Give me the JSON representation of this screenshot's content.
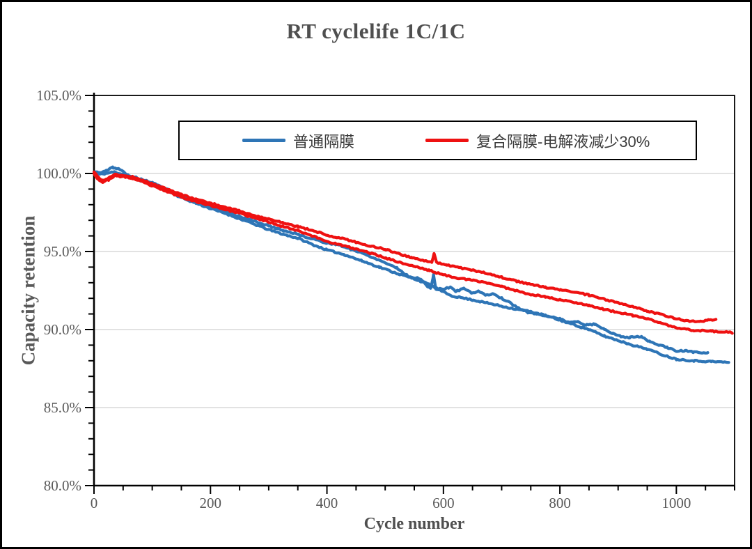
{
  "title": "RT cyclelife 1C/1C",
  "chart_data": {
    "type": "line",
    "title": "RT cyclelife 1C/1C",
    "xlabel": "Cycle number",
    "ylabel": "Capacity retention",
    "xlim": [
      0,
      1100
    ],
    "ylim": [
      80,
      105
    ],
    "grid": "horizontal-major-only",
    "legend_position": "top-center-boxed",
    "gridline_color": "#d9d9d9",
    "axis_color": "#000000",
    "tick_label_color": "#595959",
    "x_ticks": [
      {
        "value": 0,
        "label": "0"
      },
      {
        "value": 200,
        "label": "200"
      },
      {
        "value": 400,
        "label": "400"
      },
      {
        "value": 600,
        "label": "600"
      },
      {
        "value": 800,
        "label": "800"
      },
      {
        "value": 1000,
        "label": "1000"
      }
    ],
    "x_minor_step": 50,
    "y_ticks": [
      {
        "value": 105,
        "label": "105.0%"
      },
      {
        "value": 100,
        "label": "100.0%"
      },
      {
        "value": 95,
        "label": "95.0%"
      },
      {
        "value": 90,
        "label": "90.0%"
      },
      {
        "value": 85,
        "label": "85.0%"
      },
      {
        "value": 80,
        "label": "80.0%"
      }
    ],
    "y_minor_step": 1,
    "noise_amplitude": 0.045,
    "series": [
      {
        "name": "普通隔膜",
        "color": "#2E75B6",
        "traces": [
          [
            [
              0,
              100.1
            ],
            [
              10,
              100.05
            ],
            [
              20,
              100.15
            ],
            [
              32,
              100.4
            ],
            [
              45,
              100.25
            ],
            [
              58,
              99.9
            ],
            [
              75,
              99.7
            ],
            [
              100,
              99.4
            ],
            [
              125,
              99.0
            ],
            [
              150,
              98.55
            ],
            [
              175,
              98.2
            ],
            [
              200,
              97.9
            ],
            [
              225,
              97.55
            ],
            [
              250,
              97.25
            ],
            [
              275,
              96.95
            ],
            [
              300,
              96.65
            ],
            [
              325,
              96.35
            ],
            [
              350,
              96.1
            ],
            [
              375,
              95.8
            ],
            [
              400,
              95.55
            ],
            [
              415,
              95.45
            ],
            [
              430,
              95.3
            ],
            [
              460,
              94.9
            ],
            [
              490,
              94.45
            ],
            [
              520,
              93.95
            ],
            [
              540,
              93.4
            ],
            [
              560,
              93.25
            ],
            [
              572,
              92.8
            ],
            [
              578,
              92.6
            ],
            [
              583,
              93.5
            ],
            [
              587,
              92.6
            ],
            [
              600,
              92.6
            ],
            [
              612,
              92.7
            ],
            [
              622,
              92.45
            ],
            [
              635,
              92.65
            ],
            [
              648,
              92.35
            ],
            [
              660,
              92.45
            ],
            [
              672,
              92.2
            ],
            [
              685,
              92.3
            ],
            [
              700,
              92.0
            ],
            [
              715,
              91.7
            ],
            [
              730,
              91.35
            ],
            [
              745,
              91.1
            ],
            [
              760,
              91.0
            ],
            [
              780,
              90.85
            ],
            [
              800,
              90.7
            ],
            [
              815,
              90.45
            ],
            [
              830,
              90.5
            ],
            [
              845,
              90.3
            ],
            [
              860,
              90.35
            ],
            [
              875,
              90.05
            ],
            [
              890,
              89.75
            ],
            [
              905,
              89.55
            ],
            [
              920,
              89.5
            ],
            [
              940,
              89.55
            ],
            [
              955,
              89.2
            ],
            [
              970,
              89.0
            ],
            [
              985,
              88.85
            ],
            [
              1000,
              88.6
            ],
            [
              1015,
              88.65
            ],
            [
              1030,
              88.55
            ],
            [
              1054,
              88.5
            ]
          ],
          [
            [
              0,
              100.0
            ],
            [
              10,
              99.95
            ],
            [
              20,
              100.0
            ],
            [
              35,
              100.1
            ],
            [
              50,
              99.95
            ],
            [
              65,
              99.7
            ],
            [
              85,
              99.5
            ],
            [
              100,
              99.3
            ],
            [
              125,
              98.9
            ],
            [
              150,
              98.45
            ],
            [
              175,
              98.1
            ],
            [
              200,
              97.75
            ],
            [
              225,
              97.45
            ],
            [
              250,
              97.1
            ],
            [
              275,
              96.75
            ],
            [
              300,
              96.4
            ],
            [
              325,
              96.1
            ],
            [
              350,
              95.85
            ],
            [
              375,
              95.45
            ],
            [
              400,
              95.1
            ],
            [
              430,
              94.8
            ],
            [
              460,
              94.4
            ],
            [
              490,
              94.0
            ],
            [
              520,
              93.6
            ],
            [
              550,
              93.25
            ],
            [
              575,
              92.9
            ],
            [
              600,
              92.4
            ],
            [
              615,
              92.15
            ],
            [
              630,
              92.05
            ],
            [
              650,
              91.9
            ],
            [
              675,
              91.7
            ],
            [
              700,
              91.5
            ],
            [
              725,
              91.3
            ],
            [
              750,
              91.15
            ],
            [
              775,
              90.9
            ],
            [
              800,
              90.6
            ],
            [
              825,
              90.3
            ],
            [
              850,
              90.0
            ],
            [
              875,
              89.6
            ],
            [
              900,
              89.3
            ],
            [
              925,
              89.0
            ],
            [
              950,
              88.75
            ],
            [
              975,
              88.4
            ],
            [
              1000,
              88.1
            ],
            [
              1030,
              88.0
            ],
            [
              1060,
              87.95
            ],
            [
              1090,
              87.9
            ]
          ]
        ]
      },
      {
        "name": "复合隔膜-电解液减少30%",
        "color": "#EE1111",
        "traces": [
          [
            [
              0,
              100.1
            ],
            [
              8,
              99.75
            ],
            [
              15,
              99.55
            ],
            [
              25,
              99.7
            ],
            [
              35,
              99.95
            ],
            [
              50,
              99.85
            ],
            [
              65,
              99.8
            ],
            [
              80,
              99.6
            ],
            [
              100,
              99.35
            ],
            [
              125,
              99.0
            ],
            [
              150,
              98.65
            ],
            [
              175,
              98.35
            ],
            [
              200,
              98.1
            ],
            [
              225,
              97.85
            ],
            [
              250,
              97.6
            ],
            [
              275,
              97.3
            ],
            [
              290,
              97.15
            ],
            [
              305,
              97.05
            ],
            [
              325,
              96.85
            ],
            [
              350,
              96.6
            ],
            [
              375,
              96.35
            ],
            [
              400,
              96.05
            ],
            [
              425,
              95.85
            ],
            [
              450,
              95.6
            ],
            [
              475,
              95.35
            ],
            [
              500,
              95.15
            ],
            [
              520,
              94.9
            ],
            [
              545,
              94.6
            ],
            [
              565,
              94.45
            ],
            [
              580,
              94.3
            ],
            [
              584,
              94.9
            ],
            [
              588,
              94.3
            ],
            [
              605,
              94.15
            ],
            [
              630,
              93.95
            ],
            [
              650,
              93.8
            ],
            [
              675,
              93.6
            ],
            [
              700,
              93.35
            ],
            [
              725,
              93.1
            ],
            [
              750,
              92.9
            ],
            [
              775,
              92.7
            ],
            [
              800,
              92.55
            ],
            [
              825,
              92.4
            ],
            [
              850,
              92.2
            ],
            [
              875,
              91.95
            ],
            [
              900,
              91.7
            ],
            [
              925,
              91.45
            ],
            [
              950,
              91.2
            ],
            [
              975,
              90.95
            ],
            [
              1000,
              90.7
            ],
            [
              1020,
              90.55
            ],
            [
              1040,
              90.5
            ],
            [
              1055,
              90.6
            ],
            [
              1068,
              90.65
            ]
          ],
          [
            [
              0,
              100.0
            ],
            [
              8,
              99.6
            ],
            [
              15,
              99.45
            ],
            [
              25,
              99.6
            ],
            [
              35,
              99.85
            ],
            [
              50,
              99.8
            ],
            [
              65,
              99.7
            ],
            [
              80,
              99.5
            ],
            [
              100,
              99.2
            ],
            [
              125,
              98.85
            ],
            [
              150,
              98.5
            ],
            [
              175,
              98.2
            ],
            [
              200,
              97.95
            ],
            [
              225,
              97.7
            ],
            [
              250,
              97.45
            ],
            [
              275,
              97.15
            ],
            [
              300,
              96.9
            ],
            [
              325,
              96.6
            ],
            [
              350,
              96.35
            ],
            [
              375,
              96.0
            ],
            [
              400,
              95.65
            ],
            [
              425,
              95.4
            ],
            [
              450,
              95.15
            ],
            [
              475,
              94.9
            ],
            [
              500,
              94.6
            ],
            [
              525,
              94.3
            ],
            [
              550,
              94.05
            ],
            [
              575,
              93.8
            ],
            [
              600,
              93.5
            ],
            [
              625,
              93.3
            ],
            [
              650,
              93.15
            ],
            [
              675,
              93.0
            ],
            [
              700,
              92.75
            ],
            [
              725,
              92.5
            ],
            [
              750,
              92.25
            ],
            [
              775,
              92.1
            ],
            [
              800,
              91.9
            ],
            [
              825,
              91.75
            ],
            [
              850,
              91.55
            ],
            [
              875,
              91.3
            ],
            [
              900,
              91.1
            ],
            [
              925,
              90.9
            ],
            [
              950,
              90.7
            ],
            [
              975,
              90.4
            ],
            [
              1000,
              90.1
            ],
            [
              1030,
              89.95
            ],
            [
              1060,
              89.9
            ],
            [
              1096,
              89.8
            ]
          ]
        ]
      }
    ]
  }
}
